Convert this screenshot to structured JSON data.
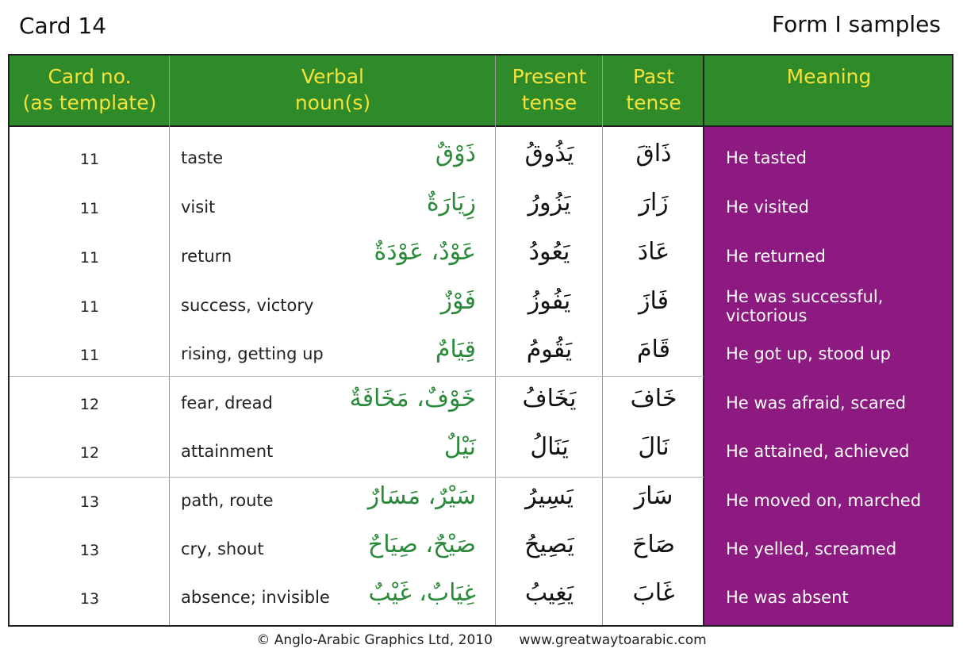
{
  "card_title": "Card 14",
  "page_title": "Form I samples",
  "headers": {
    "card_no": [
      "Card no.",
      "(as template)"
    ],
    "verbal_noun": [
      "Verbal",
      "noun(s)"
    ],
    "present": [
      "Present",
      "tense"
    ],
    "past": [
      "Past",
      "tense"
    ],
    "meaning": [
      "Meaning"
    ]
  },
  "colors": {
    "header_bg": "#2f8a2a",
    "header_text": "#f3e23a",
    "meaning_bg": "#8c1a80",
    "arabic_noun": "#2a8a3a"
  },
  "rows": [
    {
      "card": "11",
      "english": "taste",
      "noun": "ذَوْقٌ",
      "present": "يَذُوقُ",
      "past": "ذَاقَ",
      "meaning": "He tasted"
    },
    {
      "card": "11",
      "english": "visit",
      "noun": "زِيَارَةٌ",
      "present": "يَزُورُ",
      "past": "زَارَ",
      "meaning": "He visited"
    },
    {
      "card": "11",
      "english": "return",
      "noun": "عَوْدٌ، عَوْدَةٌ",
      "present": "يَعُودُ",
      "past": "عَادَ",
      "meaning": "He returned"
    },
    {
      "card": "11",
      "english": "success, victory",
      "noun": "فَوْزٌ",
      "present": "يَفُوزُ",
      "past": "فَازَ",
      "meaning": "He was successful, victorious"
    },
    {
      "card": "11",
      "english": "rising, getting up",
      "noun": "قِيَامٌ",
      "present": "يَقُومُ",
      "past": "قَامَ",
      "meaning": "He got up, stood up"
    },
    {
      "card": "12",
      "english": "fear, dread",
      "noun": "خَوْفٌ، مَخَافَةٌ",
      "present": "يَخَافُ",
      "past": "خَافَ",
      "meaning": "He was afraid, scared"
    },
    {
      "card": "12",
      "english": "attainment",
      "noun": "نَيْلٌ",
      "present": "يَنَالُ",
      "past": "نَالَ",
      "meaning": "He attained, achieved"
    },
    {
      "card": "13",
      "english": "path, route",
      "noun": "سَيْرٌ، مَسَارٌ",
      "present": "يَسِيرُ",
      "past": "سَارَ",
      "meaning": "He moved on, marched"
    },
    {
      "card": "13",
      "english": "cry, shout",
      "noun": "صَيْحٌ، صِيَاحٌ",
      "present": "يَصِيحُ",
      "past": "صَاحَ",
      "meaning": "He yelled, screamed"
    },
    {
      "card": "13",
      "english": "absence; invisible",
      "noun": "غِيَابٌ، غَيْبٌ",
      "present": "يَغِيبُ",
      "past": "غَابَ",
      "meaning": "He was absent"
    }
  ],
  "footer": {
    "copyright": "© Anglo-Arabic Graphics Ltd, 2010",
    "website": "www.greatwaytoarabic.com"
  }
}
